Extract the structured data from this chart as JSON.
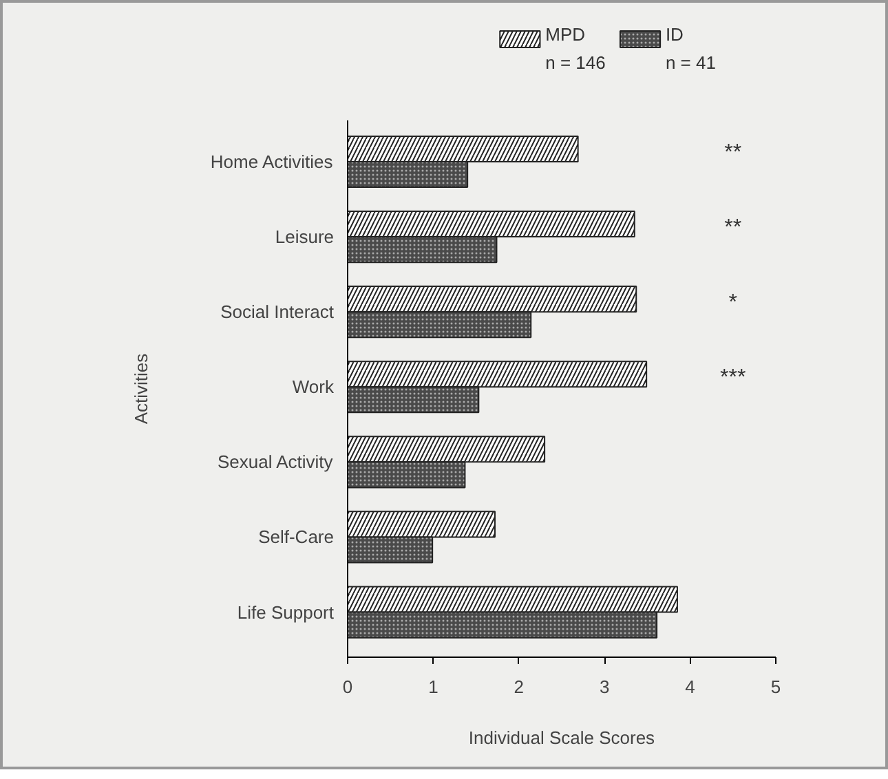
{
  "chart_data": {
    "type": "bar",
    "orientation": "horizontal",
    "xlabel": "Individual Scale Scores",
    "ylabel": "Activities",
    "categories": [
      "Home Activities",
      "Leisure",
      "Social Interact",
      "Work",
      "Sexual Activity",
      "Self-Care",
      "Life Support"
    ],
    "series": [
      {
        "name": "MPD\nn = 146",
        "color": "#ffffff",
        "values": [
          2.69,
          3.35,
          3.37,
          3.49,
          2.3,
          1.72,
          3.85
        ]
      },
      {
        "name": "ID\nn = 41",
        "color": "#4a4a4a",
        "values": [
          1.4,
          1.74,
          2.14,
          1.53,
          1.37,
          0.99,
          3.61
        ]
      }
    ],
    "xlim": [
      0,
      5
    ],
    "xticks": [
      0,
      1,
      2,
      3,
      4,
      5
    ],
    "grid": false,
    "legend": "top",
    "annotations": [
      "**",
      "**",
      "*",
      "***"
    ]
  }
}
